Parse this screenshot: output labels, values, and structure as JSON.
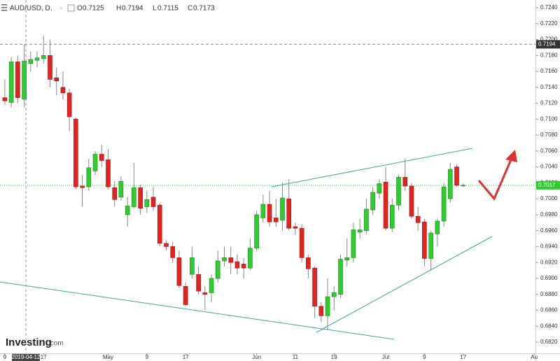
{
  "chart_data": {
    "type": "candlestick",
    "title": "AUD/USD, D,",
    "header_labels": [
      "O",
      "H",
      "L",
      "C"
    ],
    "crosshair_date": "2019-04-12",
    "crosshair_price": 0.7194,
    "last_price": 0.7017,
    "watermark": "Investing",
    "watermark_suffix": ".com",
    "up_color": "#2ecc2e",
    "down_color": "#e32222",
    "open": [
      0.7127,
      0.7121,
      0.7172,
      0.7125,
      0.717,
      0.7174,
      0.7176,
      0.718,
      0.7152,
      0.714,
      0.7133,
      0.71,
      0.7016,
      0.7015,
      0.7035,
      0.7056,
      0.7049,
      0.7014,
      0.7002,
      0.698,
      0.699,
      0.7014,
      0.699,
      0.7002,
      0.6992,
      0.6944,
      0.694,
      0.6926,
      0.689,
      0.6905,
      0.6905,
      0.6882,
      0.6882,
      0.69,
      0.6922,
      0.6926,
      0.6921,
      0.6918,
      0.6913,
      0.6938,
      0.6976,
      0.6993,
      0.6976,
      0.6973,
      0.7,
      0.6965,
      0.6963,
      0.6926,
      0.6913,
      0.6865,
      0.6853,
      0.6877,
      0.688,
      0.6923,
      0.6926,
      0.6958,
      0.696,
      0.6986,
      0.7007,
      0.7021,
      0.6963,
      0.6992,
      0.7027,
      0.7016,
      0.6978,
      0.6971,
      0.6925,
      0.6956,
      0.6972,
      0.7,
      0.704,
      0.7017
    ],
    "high": [
      0.715,
      0.7178,
      0.718,
      0.7194,
      0.7185,
      0.7185,
      0.7205,
      0.72,
      0.7165,
      0.716,
      0.7138,
      0.7102,
      0.703,
      0.705,
      0.706,
      0.7068,
      0.7062,
      0.7022,
      0.7028,
      0.7002,
      0.7045,
      0.7018,
      0.701,
      0.7015,
      0.6995,
      0.6948,
      0.6946,
      0.6935,
      0.6895,
      0.694,
      0.6915,
      0.689,
      0.6905,
      0.6935,
      0.694,
      0.694,
      0.693,
      0.6925,
      0.695,
      0.6985,
      0.7005,
      0.701,
      0.7,
      0.702,
      0.7025,
      0.697,
      0.6968,
      0.693,
      0.6915,
      0.687,
      0.69,
      0.689,
      0.693,
      0.695,
      0.697,
      0.6975,
      0.7,
      0.7015,
      0.7025,
      0.704,
      0.7,
      0.703,
      0.705,
      0.702,
      0.699,
      0.6975,
      0.696,
      0.6975,
      0.702,
      0.7045,
      0.7043,
      0.7019
    ],
    "low": [
      0.7118,
      0.7115,
      0.712,
      0.7115,
      0.716,
      0.7165,
      0.717,
      0.714,
      0.713,
      0.7125,
      0.7085,
      0.7012,
      0.699,
      0.701,
      0.703,
      0.704,
      0.7012,
      0.699,
      0.6998,
      0.6965,
      0.6988,
      0.698,
      0.6982,
      0.6985,
      0.694,
      0.6935,
      0.692,
      0.6888,
      0.6865,
      0.69,
      0.688,
      0.686,
      0.687,
      0.6895,
      0.6915,
      0.6905,
      0.6905,
      0.69,
      0.691,
      0.6935,
      0.697,
      0.6965,
      0.6965,
      0.696,
      0.696,
      0.6955,
      0.692,
      0.69,
      0.685,
      0.6845,
      0.6835,
      0.686,
      0.6875,
      0.6915,
      0.692,
      0.695,
      0.6955,
      0.698,
      0.7,
      0.696,
      0.6958,
      0.6985,
      0.701,
      0.6975,
      0.696,
      0.6915,
      0.691,
      0.694,
      0.6965,
      0.6995,
      0.7015,
      0.7015
    ],
    "close": [
      0.7123,
      0.7172,
      0.7127,
      0.7173,
      0.7175,
      0.7177,
      0.718,
      0.715,
      0.7148,
      0.7133,
      0.7103,
      0.7015,
      0.7014,
      0.7039,
      0.7056,
      0.7048,
      0.7015,
      0.6999,
      0.7022,
      0.6991,
      0.7014,
      0.6988,
      0.6999,
      0.699,
      0.6944,
      0.694,
      0.6926,
      0.6891,
      0.6867,
      0.6926,
      0.6884,
      0.688,
      0.69,
      0.6922,
      0.6926,
      0.692,
      0.6913,
      0.6913,
      0.6938,
      0.698,
      0.6993,
      0.6971,
      0.6971,
      0.7001,
      0.6963,
      0.6963,
      0.6926,
      0.6912,
      0.6865,
      0.6853,
      0.6877,
      0.6882,
      0.6924,
      0.6926,
      0.6961,
      0.6961,
      0.6987,
      0.7008,
      0.7019,
      0.6963,
      0.6992,
      0.7027,
      0.7016,
      0.6978,
      0.697,
      0.6925,
      0.6957,
      0.6972,
      0.7015,
      0.7037,
      0.7017,
      0.7017
    ],
    "xlim": [
      -0.75,
      82.2
    ],
    "xticks": [
      {
        "value": 0,
        "label": "9"
      },
      {
        "value": 6,
        "label": "17"
      },
      {
        "value": 16,
        "label": "May"
      },
      {
        "value": 22,
        "label": "9"
      },
      {
        "value": 28,
        "label": "17"
      },
      {
        "value": 39,
        "label": "Jun"
      },
      {
        "value": 45,
        "label": "11"
      },
      {
        "value": 51,
        "label": "19"
      },
      {
        "value": 59,
        "label": "Jul"
      },
      {
        "value": 65,
        "label": "9"
      },
      {
        "value": 71,
        "label": "17"
      },
      {
        "value": 82,
        "label": "Au"
      }
    ],
    "ylim": [
      0.68059,
      0.72497
    ],
    "yticks": [
      {
        "value": 0.682,
        "label": "0.6820"
      },
      {
        "value": 0.684,
        "label": "0.6840"
      },
      {
        "value": 0.686,
        "label": "0.6860"
      },
      {
        "value": 0.688,
        "label": "0.6880"
      },
      {
        "value": 0.69,
        "label": "0.6900"
      },
      {
        "value": 0.692,
        "label": "0.6920"
      },
      {
        "value": 0.694,
        "label": "0.6940"
      },
      {
        "value": 0.696,
        "label": "0.6960"
      },
      {
        "value": 0.698,
        "label": "0.6980"
      },
      {
        "value": 0.7,
        "label": "0.7000"
      },
      {
        "value": 0.702,
        "label": "0.7020"
      },
      {
        "value": 0.704,
        "label": "0.7040"
      },
      {
        "value": 0.706,
        "label": "0.7060"
      },
      {
        "value": 0.708,
        "label": "0.7080"
      },
      {
        "value": 0.71,
        "label": "0.7100"
      },
      {
        "value": 0.712,
        "label": "0.7120"
      },
      {
        "value": 0.714,
        "label": "0.7140"
      },
      {
        "value": 0.716,
        "label": "0.7160"
      },
      {
        "value": 0.718,
        "label": "0.7180"
      },
      {
        "value": 0.72,
        "label": "0.7200"
      },
      {
        "value": 0.722,
        "label": "0.7220"
      },
      {
        "value": 0.724,
        "label": "0.7240"
      }
    ]
  }
}
